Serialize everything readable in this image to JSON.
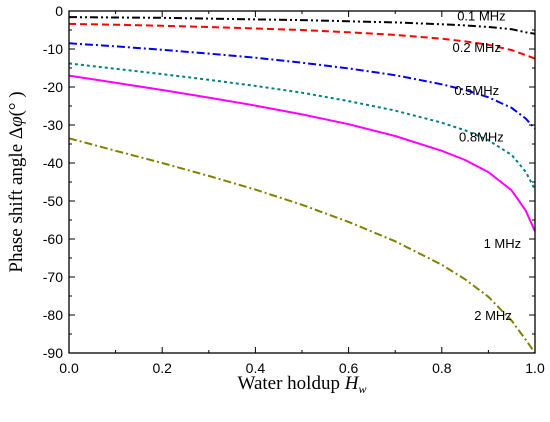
{
  "chart_data": {
    "type": "line",
    "xlabel": "Water holdup ",
    "xlabel_var": "H",
    "xlabel_sub": "w",
    "ylabel": "Phase shift angle Δ",
    "ylabel_var": "φ",
    "ylabel_unit": "(° )",
    "xlim": [
      0,
      1
    ],
    "ylim": [
      -90,
      0
    ],
    "xticks": [
      "0.0",
      "0.2",
      "0.4",
      "0.6",
      "0.8",
      "1.0"
    ],
    "yticks": [
      "0",
      "-10",
      "-20",
      "-30",
      "-40",
      "-50",
      "-60",
      "-70",
      "-80",
      "-90"
    ],
    "grid": false,
    "legend": "inline labels near right end of each curve",
    "x": [
      0,
      0.1,
      0.2,
      0.3,
      0.4,
      0.5,
      0.6,
      0.7,
      0.8,
      0.85,
      0.9,
      0.95,
      0.98,
      1.0
    ],
    "series": [
      {
        "name": "0.1 MHz",
        "color": "#000000",
        "dash": "dashdotdot",
        "values": [
          -1.6,
          -1.7,
          -1.8,
          -2.0,
          -2.2,
          -2.4,
          -2.7,
          -3.0,
          -3.5,
          -3.8,
          -4.2,
          -4.8,
          -5.6,
          -6.0
        ]
      },
      {
        "name": "0.2 MHz",
        "color": "#ff0000",
        "dash": "dash",
        "values": [
          -3.4,
          -3.6,
          -3.9,
          -4.2,
          -4.6,
          -5.0,
          -5.6,
          -6.3,
          -7.3,
          -8.0,
          -8.9,
          -10.3,
          -11.6,
          -12.5
        ]
      },
      {
        "name": "0.5MHz",
        "color": "#0000ee",
        "dash": "dashdot",
        "values": [
          -8.5,
          -9.3,
          -10.2,
          -11.2,
          -12.3,
          -13.6,
          -15.1,
          -16.9,
          -19.3,
          -20.8,
          -22.7,
          -25.5,
          -28.3,
          -31.0
        ]
      },
      {
        "name": "0.8MHz",
        "color": "#008080",
        "dash": "shortdash",
        "values": [
          -13.8,
          -15.2,
          -16.6,
          -18.1,
          -19.7,
          -21.5,
          -23.7,
          -26.2,
          -29.4,
          -31.4,
          -34.0,
          -37.9,
          -42.3,
          -47.0
        ]
      },
      {
        "name": "1 MHz",
        "color": "#ff00ff",
        "dash": "solid",
        "values": [
          -17.0,
          -18.9,
          -20.8,
          -22.8,
          -24.9,
          -27.2,
          -29.8,
          -32.9,
          -36.8,
          -39.2,
          -42.4,
          -47.2,
          -52.5,
          -58.0
        ]
      },
      {
        "name": "2 MHz",
        "color": "#808000",
        "dash": "dashdot",
        "values": [
          -33.5,
          -36.8,
          -40.0,
          -43.4,
          -47.0,
          -51.0,
          -55.5,
          -60.6,
          -66.8,
          -70.6,
          -75.2,
          -81.5,
          -86.5,
          -90.0
        ]
      }
    ]
  }
}
